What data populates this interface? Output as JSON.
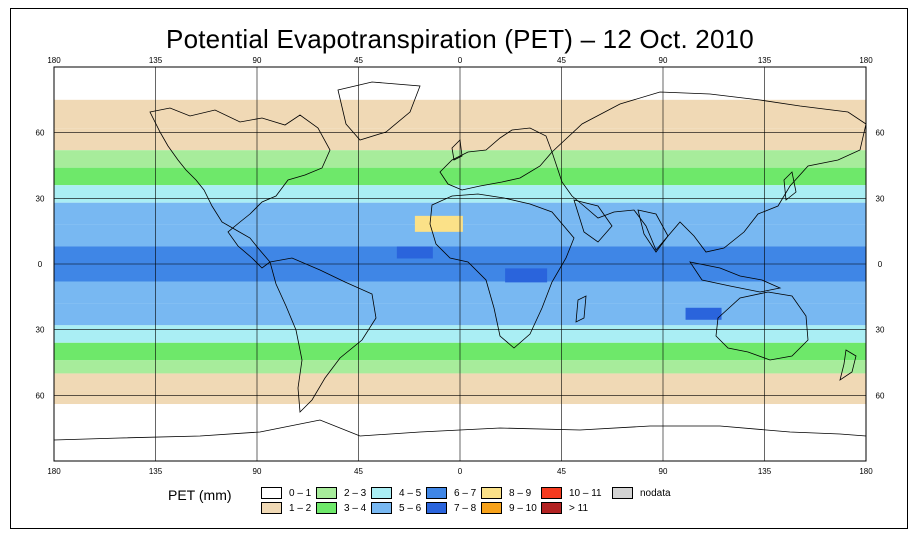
{
  "title": "Potential Evapotranspiration (PET) – 12 Oct. 2010",
  "map": {
    "lon_ticks": [
      "180",
      "135",
      "90",
      "45",
      "0",
      "45",
      "90",
      "135",
      "180"
    ],
    "lat_ticks": [
      "60",
      "30",
      "0",
      "30",
      "60"
    ],
    "lon_range": [
      -180,
      180
    ],
    "lat_range": [
      -90,
      90
    ],
    "grid": true,
    "projection": "equirectangular"
  },
  "legend": {
    "title": "PET (mm)",
    "items": [
      {
        "label": "0 – 1",
        "color": "#ffffff"
      },
      {
        "label": "1 – 2",
        "color": "#f0d9b5"
      },
      {
        "label": "2 – 3",
        "color": "#a7ec9b"
      },
      {
        "label": "3 – 4",
        "color": "#6ee86a"
      },
      {
        "label": "4 – 5",
        "color": "#aaeef4"
      },
      {
        "label": "5 – 6",
        "color": "#78b8f2"
      },
      {
        "label": "6 – 7",
        "color": "#3f86e6"
      },
      {
        "label": "7 – 8",
        "color": "#2a64dc"
      },
      {
        "label": "8 – 9",
        "color": "#fbe188"
      },
      {
        "label": "9 – 10",
        "color": "#f7a21a"
      },
      {
        "label": "10 – 11",
        "color": "#f53a1e"
      },
      {
        "label": "> 11",
        "color": "#b22222"
      },
      {
        "label": "nodata",
        "color": "#d3d3d3"
      }
    ]
  }
}
